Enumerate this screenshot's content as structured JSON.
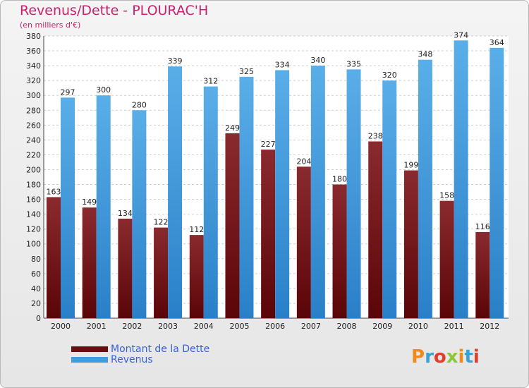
{
  "title": "Revenus/Dette - PLOURAC'H",
  "subtitle": "(en milliers d'€)",
  "logo": {
    "text": "Proxiti",
    "letter_colors": [
      "#f08a1c",
      "#3aa0d8",
      "#e43c2c",
      "#8cc63e",
      "#f08a1c",
      "#3aa0d8",
      "#e43c2c"
    ]
  },
  "chart_data": {
    "type": "bar",
    "categories": [
      "2000",
      "2001",
      "2002",
      "2003",
      "2004",
      "2005",
      "2006",
      "2007",
      "2008",
      "2009",
      "2010",
      "2011",
      "2012"
    ],
    "series": [
      {
        "name": "Montant de la Dette",
        "color": "#7a1a1f",
        "values": [
          163,
          149,
          134,
          122,
          112,
          249,
          227,
          204,
          180,
          238,
          199,
          158,
          116
        ]
      },
      {
        "name": "Revenus",
        "color": "#3d9de0",
        "values": [
          297,
          300,
          280,
          339,
          312,
          325,
          334,
          340,
          335,
          320,
          348,
          374,
          364
        ]
      }
    ],
    "ylim": [
      0,
      380
    ],
    "yticks": [
      0,
      20,
      40,
      60,
      80,
      100,
      120,
      140,
      160,
      180,
      200,
      220,
      240,
      260,
      280,
      300,
      320,
      340,
      360,
      380
    ],
    "grid": true,
    "legend_position": "bottom-left"
  }
}
